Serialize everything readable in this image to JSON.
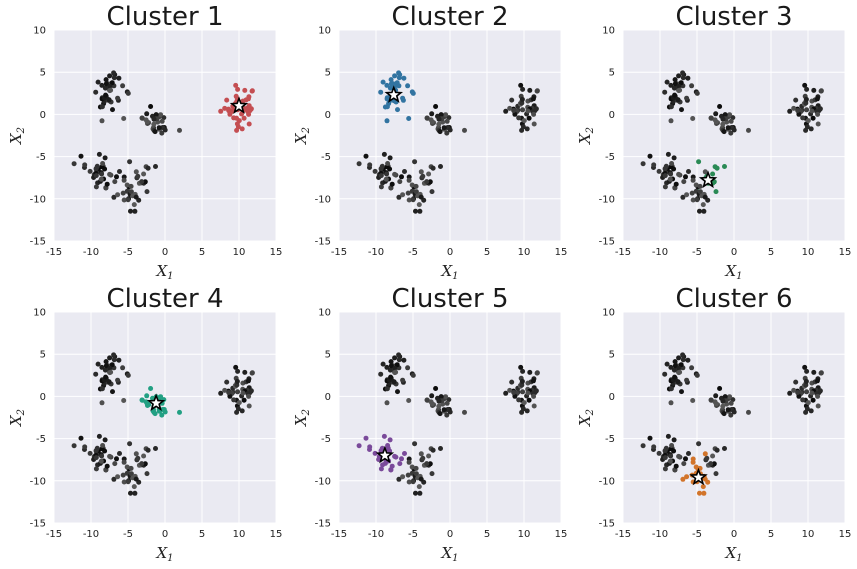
{
  "figure": {
    "x_symbol": "X",
    "x_subscript": "1",
    "y_symbol": "X",
    "y_subscript": "2"
  },
  "chart_data": [
    {
      "type": "scatter",
      "title": "Cluster 1",
      "xlim": [
        -15,
        15
      ],
      "ylim": [
        -15,
        10
      ],
      "xticks": [
        "-15",
        "-10",
        "-5",
        "0",
        "5",
        "10",
        "15"
      ],
      "yticks": [
        "-15",
        "-10",
        "-5",
        "0",
        "5",
        "10"
      ],
      "grid": true,
      "highlight_color": "#c44e52",
      "centroid": [
        10,
        1
      ],
      "highlight_cluster": 1
    },
    {
      "type": "scatter",
      "title": "Cluster 2",
      "xlim": [
        -15,
        15
      ],
      "ylim": [
        -15,
        10
      ],
      "xticks": [
        "-15",
        "-10",
        "-5",
        "0",
        "5",
        "10",
        "15"
      ],
      "yticks": [
        "-15",
        "-10",
        "-5",
        "0",
        "5",
        "10"
      ],
      "grid": true,
      "highlight_color": "#3274a1",
      "centroid": [
        -7.6,
        2.3
      ],
      "highlight_cluster": 2
    },
    {
      "type": "scatter",
      "title": "Cluster 3",
      "xlim": [
        -15,
        15
      ],
      "ylim": [
        -15,
        10
      ],
      "xticks": [
        "-15",
        "-10",
        "-5",
        "0",
        "5",
        "10",
        "15"
      ],
      "yticks": [
        "-15",
        "-10",
        "-5",
        "0",
        "5",
        "10"
      ],
      "grid": true,
      "highlight_color": "#2a8a55",
      "centroid": [
        -3.5,
        -7.8
      ],
      "highlight_cluster": 3
    },
    {
      "type": "scatter",
      "title": "Cluster 4",
      "xlim": [
        -15,
        15
      ],
      "ylim": [
        -15,
        10
      ],
      "xticks": [
        "-15",
        "-10",
        "-5",
        "0",
        "5",
        "10",
        "15"
      ],
      "yticks": [
        "-15",
        "-10",
        "-5",
        "0",
        "5",
        "10"
      ],
      "grid": true,
      "highlight_color": "#22a083",
      "centroid": [
        -1.2,
        -0.8
      ],
      "highlight_cluster": 4
    },
    {
      "type": "scatter",
      "title": "Cluster 5",
      "xlim": [
        -15,
        15
      ],
      "ylim": [
        -15,
        10
      ],
      "xticks": [
        "-15",
        "-10",
        "-5",
        "0",
        "5",
        "10",
        "15"
      ],
      "yticks": [
        "-15",
        "-10",
        "-5",
        "0",
        "5",
        "10"
      ],
      "grid": true,
      "highlight_color": "#7a4a9a",
      "centroid": [
        -8.8,
        -7
      ],
      "highlight_cluster": 5
    },
    {
      "type": "scatter",
      "title": "Cluster 6",
      "xlim": [
        -15,
        15
      ],
      "ylim": [
        -15,
        10
      ],
      "xticks": [
        "-15",
        "-10",
        "-5",
        "0",
        "5",
        "10",
        "15"
      ],
      "yticks": [
        "-15",
        "-10",
        "-5",
        "0",
        "5",
        "10"
      ],
      "grid": true,
      "highlight_color": "#d2742a",
      "centroid": [
        -4.8,
        -9.6
      ],
      "highlight_cluster": 6
    }
  ],
  "clusters": [
    {
      "id": 1,
      "center": [
        10,
        1
      ],
      "spread": [
        1.2,
        1.2
      ],
      "n": 45
    },
    {
      "id": 2,
      "center": [
        -7.6,
        2.4
      ],
      "spread": [
        1.0,
        1.3
      ],
      "n": 40
    },
    {
      "id": 3,
      "center": [
        -3.4,
        -7.9
      ],
      "spread": [
        0.9,
        0.9
      ],
      "n": 14
    },
    {
      "id": 4,
      "center": [
        -1.2,
        -0.8
      ],
      "spread": [
        1.1,
        1.0
      ],
      "n": 30
    },
    {
      "id": 5,
      "center": [
        -8.8,
        -7.0
      ],
      "spread": [
        1.0,
        1.0
      ],
      "n": 35
    },
    {
      "id": 6,
      "center": [
        -4.8,
        -9.3
      ],
      "spread": [
        0.9,
        0.9
      ],
      "n": 22
    }
  ]
}
